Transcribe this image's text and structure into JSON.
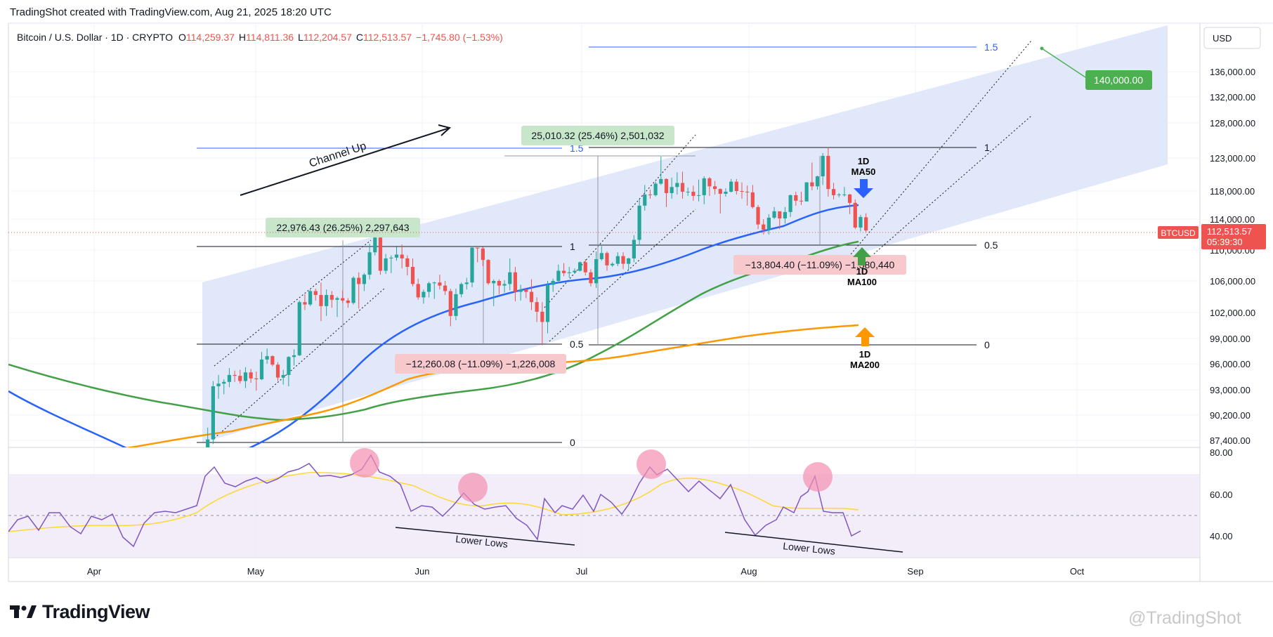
{
  "header": {
    "text": "TradingShot created with TradingView.com, Aug 21, 2025 18:20 UTC"
  },
  "brand": {
    "name": "TradingView"
  },
  "watermark": {
    "text": "@TradingShot"
  },
  "legend": {
    "symbol": "Bitcoin / U.S. Dollar · 1D · CRYPTO",
    "open_label": "O",
    "open": "114,259.37",
    "high_label": "H",
    "high": "114,811.36",
    "low_label": "L",
    "low": "112,204.57",
    "close_label": "C",
    "close": "112,513.57",
    "change": "−1,745.80 (−1.53%)"
  },
  "axis": {
    "currency": "USD",
    "price_ticks": [
      "136,000.00",
      "132,000.00",
      "128,000.00",
      "123,000.00",
      "118,000.00",
      "114,000.00",
      "110,000.00",
      "106,000.00",
      "102,000.00",
      "99,000.00",
      "96,000.00",
      "93,000.00",
      "90,200.00",
      "87,400.00"
    ],
    "rsi_ticks": [
      "80.00",
      "60.00",
      "40.00"
    ],
    "time_ticks": [
      "Apr",
      "May",
      "Jun",
      "Jul",
      "Aug",
      "Sep",
      "Oct"
    ],
    "last_price": "112,513.57",
    "countdown": "05:39:30",
    "symbol_tag": "BTCUSD"
  },
  "annotations": {
    "channel_label": "Channel Up",
    "target_label": "140,000.00",
    "measure_1": "22,976.43 (26.25%) 2,297,643",
    "measure_2": "−12,260.08 (−11.09%) −1,226,008",
    "measure_3": "25,010.32 (25.46%) 2,501,032",
    "measure_4": "−13,804.40 (−11.09%) −1,380,440",
    "fib_1_5": "1.5",
    "fib_1": "1",
    "fib_0_5": "0.5",
    "fib_0": "0",
    "ma50_line1": "1D",
    "ma50_line2": "MA50",
    "ma100_line1": "1D",
    "ma100_line2": "MA100",
    "ma200_line1": "1D",
    "ma200_line2": "MA200",
    "lower_lows": "Lower Lows"
  },
  "colors": {
    "up": "#26a69a",
    "down": "#ef5350",
    "ma50": "#2962ff",
    "ma100": "#43a047",
    "ma200": "#ff9800",
    "rsi": "#7e57c2",
    "rsi_ma": "#fdd835",
    "channel": "#dde6fa",
    "target": "#4caf50",
    "fib": "#2962ff"
  },
  "chart_data": {
    "type": "candlestick",
    "symbol": "Bitcoin / U.S. Dollar",
    "interval": "1D",
    "price_range": [
      86500,
      140500
    ],
    "ohlc": [
      [
        "2025-04-20",
        84500,
        85500,
        84000,
        85000
      ],
      [
        "2025-04-21",
        85000,
        88800,
        84800,
        87500
      ],
      [
        "2025-04-22",
        87500,
        94000,
        87000,
        93400
      ],
      [
        "2025-04-23",
        93400,
        94700,
        92000,
        93700
      ],
      [
        "2025-04-24",
        93700,
        94200,
        92500,
        93900
      ],
      [
        "2025-04-25",
        93900,
        95500,
        93300,
        94700
      ],
      [
        "2025-04-26",
        94700,
        95200,
        93900,
        94600
      ],
      [
        "2025-04-27",
        94600,
        95300,
        93700,
        94000
      ],
      [
        "2025-04-28",
        94000,
        95600,
        93200,
        95000
      ],
      [
        "2025-04-29",
        95000,
        95400,
        93800,
        94300
      ],
      [
        "2025-04-30",
        94300,
        95100,
        92900,
        94200
      ],
      [
        "2025-05-01",
        94200,
        97400,
        94100,
        96500
      ],
      [
        "2025-05-02",
        96500,
        97800,
        96000,
        96900
      ],
      [
        "2025-05-03",
        96900,
        97000,
        95700,
        95900
      ],
      [
        "2025-05-04",
        95900,
        96200,
        94000,
        94400
      ],
      [
        "2025-05-05",
        94400,
        95300,
        93600,
        94700
      ],
      [
        "2025-05-06",
        94700,
        96900,
        93400,
        96800
      ],
      [
        "2025-05-07",
        96800,
        97700,
        95800,
        97000
      ],
      [
        "2025-05-08",
        97000,
        103500,
        96900,
        103300
      ],
      [
        "2025-05-09",
        103300,
        104300,
        102300,
        103000
      ],
      [
        "2025-05-10",
        103000,
        104900,
        102800,
        104700
      ],
      [
        "2025-05-11",
        104700,
        105000,
        103500,
        104200
      ],
      [
        "2025-05-12",
        104200,
        105800,
        101000,
        102800
      ],
      [
        "2025-05-13",
        102800,
        104900,
        101600,
        104200
      ],
      [
        "2025-05-14",
        104200,
        104700,
        102600,
        103600
      ],
      [
        "2025-05-15",
        103600,
        104000,
        101500,
        103800
      ],
      [
        "2025-05-16",
        103800,
        104800,
        103200,
        103500
      ],
      [
        "2025-05-17",
        103500,
        103800,
        102600,
        103200
      ],
      [
        "2025-05-18",
        103200,
        106600,
        103000,
        106400
      ],
      [
        "2025-05-19",
        106400,
        107100,
        102500,
        105600
      ],
      [
        "2025-05-20",
        105600,
        107000,
        104700,
        106800
      ],
      [
        "2025-05-21",
        106800,
        110800,
        106200,
        109700
      ],
      [
        "2025-05-22",
        109700,
        112000,
        109300,
        111600
      ],
      [
        "2025-05-23",
        111600,
        111900,
        106800,
        107300
      ],
      [
        "2025-05-24",
        107300,
        109500,
        106900,
        108900
      ],
      [
        "2025-05-25",
        108900,
        109300,
        107000,
        109000
      ],
      [
        "2025-05-26",
        109000,
        110400,
        108600,
        109400
      ],
      [
        "2025-05-27",
        109400,
        110700,
        107600,
        108900
      ],
      [
        "2025-05-28",
        108900,
        109300,
        106700,
        107800
      ],
      [
        "2025-05-29",
        107800,
        108900,
        105300,
        105600
      ],
      [
        "2025-05-30",
        105600,
        106300,
        103600,
        103900
      ],
      [
        "2025-05-31",
        103900,
        104900,
        103100,
        104600
      ],
      [
        "2025-06-01",
        104600,
        105900,
        103900,
        105700
      ],
      [
        "2025-06-02",
        105700,
        105900,
        103700,
        105800
      ],
      [
        "2025-06-03",
        105800,
        106800,
        104900,
        105400
      ],
      [
        "2025-06-04",
        105400,
        106000,
        104200,
        104700
      ],
      [
        "2025-06-05",
        104700,
        105000,
        100400,
        101600
      ],
      [
        "2025-06-06",
        101600,
        105000,
        101100,
        104300
      ],
      [
        "2025-06-07",
        104300,
        105800,
        103900,
        105600
      ],
      [
        "2025-06-08",
        105600,
        106400,
        104900,
        105800
      ],
      [
        "2025-06-09",
        105800,
        110500,
        105200,
        110300
      ],
      [
        "2025-06-10",
        110300,
        110300,
        108400,
        110200
      ],
      [
        "2025-06-11",
        110200,
        110400,
        107900,
        108700
      ],
      [
        "2025-06-12",
        108700,
        108800,
        105500,
        105700
      ],
      [
        "2025-06-13",
        105700,
        106200,
        102800,
        106000
      ],
      [
        "2025-06-14",
        106000,
        106200,
        104300,
        105400
      ],
      [
        "2025-06-15",
        105400,
        106100,
        104500,
        105600
      ],
      [
        "2025-06-16",
        105600,
        108900,
        104800,
        107100
      ],
      [
        "2025-06-17",
        107100,
        107800,
        103400,
        104600
      ],
      [
        "2025-06-18",
        104600,
        105500,
        103500,
        104900
      ],
      [
        "2025-06-19",
        104900,
        105000,
        103800,
        104600
      ],
      [
        "2025-06-20",
        104600,
        106200,
        102300,
        103300
      ],
      [
        "2025-06-21",
        103300,
        103900,
        100900,
        102100
      ],
      [
        "2025-06-22",
        102100,
        103300,
        98200,
        100900
      ],
      [
        "2025-06-23",
        100900,
        106000,
        99600,
        105500
      ],
      [
        "2025-06-24",
        105500,
        106300,
        104600,
        106000
      ],
      [
        "2025-06-25",
        106000,
        108100,
        105700,
        107300
      ],
      [
        "2025-06-26",
        107300,
        108300,
        106600,
        107000
      ],
      [
        "2025-06-27",
        107000,
        107800,
        106400,
        107100
      ],
      [
        "2025-06-28",
        107100,
        107600,
        106900,
        107300
      ],
      [
        "2025-06-29",
        107300,
        108500,
        107200,
        108400
      ],
      [
        "2025-06-30",
        108400,
        108800,
        106700,
        107100
      ],
      [
        "2025-07-01",
        107100,
        107500,
        105300,
        105700
      ],
      [
        "2025-07-02",
        105700,
        109800,
        105100,
        108800
      ],
      [
        "2025-07-03",
        108800,
        110500,
        108600,
        109600
      ],
      [
        "2025-07-04",
        109600,
        109800,
        107300,
        108000
      ],
      [
        "2025-07-05",
        108000,
        108400,
        107800,
        108200
      ],
      [
        "2025-07-06",
        108200,
        109700,
        107900,
        109200
      ],
      [
        "2025-07-07",
        109200,
        109700,
        107500,
        108200
      ],
      [
        "2025-07-08",
        108200,
        109000,
        107400,
        108900
      ],
      [
        "2025-07-09",
        108900,
        111900,
        108400,
        111300
      ],
      [
        "2025-07-10",
        111300,
        116800,
        110600,
        115900
      ],
      [
        "2025-07-11",
        115900,
        118900,
        115200,
        117500
      ],
      [
        "2025-07-12",
        117500,
        118200,
        116900,
        117400
      ],
      [
        "2025-07-13",
        117400,
        119400,
        117200,
        119100
      ],
      [
        "2025-07-14",
        119100,
        123200,
        118900,
        119800
      ],
      [
        "2025-07-15",
        119800,
        119900,
        115700,
        117700
      ],
      [
        "2025-07-16",
        117700,
        120000,
        116900,
        118600
      ],
      [
        "2025-07-17",
        118600,
        120800,
        117500,
        119200
      ],
      [
        "2025-07-18",
        119200,
        120900,
        116900,
        117900
      ],
      [
        "2025-07-19",
        117900,
        118500,
        117300,
        117900
      ],
      [
        "2025-07-20",
        117900,
        118800,
        116600,
        117300
      ],
      [
        "2025-07-21",
        117300,
        119700,
        116500,
        117400
      ],
      [
        "2025-07-22",
        117400,
        120200,
        116100,
        119900
      ],
      [
        "2025-07-23",
        119900,
        120100,
        117300,
        118700
      ],
      [
        "2025-07-24",
        118700,
        119500,
        117500,
        118300
      ],
      [
        "2025-07-25",
        118300,
        118400,
        114800,
        117600
      ],
      [
        "2025-07-26",
        117600,
        118400,
        117200,
        117900
      ],
      [
        "2025-07-27",
        117900,
        119800,
        117800,
        119400
      ],
      [
        "2025-07-28",
        119400,
        119800,
        117500,
        118000
      ],
      [
        "2025-07-29",
        118000,
        119300,
        116900,
        117900
      ],
      [
        "2025-07-30",
        117900,
        118800,
        115900,
        117800
      ],
      [
        "2025-07-31",
        117800,
        118900,
        115500,
        115700
      ],
      [
        "2025-08-01",
        115700,
        116000,
        112700,
        113300
      ],
      [
        "2025-08-02",
        113300,
        114000,
        112000,
        112600
      ],
      [
        "2025-08-03",
        112600,
        114700,
        112000,
        114200
      ],
      [
        "2025-08-04",
        114200,
        115700,
        114000,
        115100
      ],
      [
        "2025-08-05",
        115100,
        115100,
        112700,
        114100
      ],
      [
        "2025-08-06",
        114100,
        115700,
        113400,
        115000
      ],
      [
        "2025-08-07",
        115000,
        117500,
        114300,
        117400
      ],
      [
        "2025-08-08",
        117400,
        117900,
        115900,
        116600
      ],
      [
        "2025-08-09",
        116600,
        117900,
        116000,
        116500
      ],
      [
        "2025-08-10",
        116500,
        119300,
        116500,
        119300
      ],
      [
        "2025-08-11",
        119300,
        122300,
        118100,
        118700
      ],
      [
        "2025-08-12",
        118700,
        120300,
        118200,
        120200
      ],
      [
        "2025-08-13",
        120200,
        123700,
        118900,
        123300
      ],
      [
        "2025-08-14",
        123300,
        124500,
        117200,
        118300
      ],
      [
        "2025-08-15",
        118300,
        119200,
        116800,
        117400
      ],
      [
        "2025-08-16",
        117400,
        117700,
        117100,
        117500
      ],
      [
        "2025-08-17",
        117500,
        118600,
        117200,
        117500
      ],
      [
        "2025-08-18",
        117500,
        117600,
        114700,
        116300
      ],
      [
        "2025-08-19",
        116300,
        116800,
        112700,
        112900
      ],
      [
        "2025-08-20",
        112900,
        114600,
        112400,
        114300
      ],
      [
        "2025-08-21",
        114259.37,
        114811.36,
        112204.57,
        112513.57
      ]
    ]
  }
}
